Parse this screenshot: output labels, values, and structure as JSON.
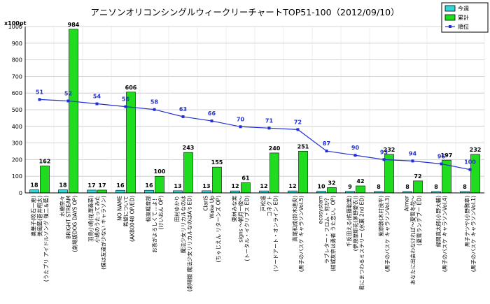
{
  "chart_data": {
    "type": "bar",
    "title": "アニソンオリコンシングルウィークリーチャートTOP51-100（2012/09/10）",
    "xlabel": "",
    "ylabel": "x100pt",
    "ylim": [
      0,
      1000
    ],
    "yticks": [
      0,
      100,
      200,
      300,
      400,
      500,
      600,
      700,
      800,
      900,
      1000
    ],
    "grid": true,
    "legend_position": "top-right",
    "colors": {
      "weekly": "#33d6d6",
      "cumulative": "#1fdc1f",
      "rank": "#1f2fd6"
    },
    "categories": [
      [
        "奥華子(吹石一恵)",
        "美風藍(蒼井翔太)",
        "(うたプリ アイドルソング 嶺二＆藍)"
      ],
      [
        "水樹奈々",
        "BRIGHT STREAM",
        "(劇場版DOG DAYS OP)"
      ],
      [
        "羽鳥小鳩(花澤香菜)",
        "小鳩のうたってみた",
        "(僕は友達が少ない キャラソン)"
      ],
      [
        "NO NAME",
        "希望について",
        "(AKB0048 OP/ED)"
      ],
      [
        "桜高軽音部",
        "お茶がよろしくて…よ！",
        "(けいおん OP)"
      ],
      [
        "田村ゆかり",
        "魔法少女リリカルなのは",
        "(劇場版 魔法少女リリカルなのはA's ED)"
      ],
      [
        "ClariS",
        "Wake Up",
        "(ちゃじえん リターンズ OP)"
      ],
      [
        "栗林みな実",
        "signs ～朝月一夜～",
        "(トータル・イクリプス ED)"
      ],
      [
        "戸松遥",
        "コネクト",
        "(ソードアート・オンライン ED)"
      ],
      [
        "高尾和成(鈴木達央)",
        "(黒子のバスケ キャラソンVol.5)"
      ],
      [
        "ecosystem",
        "ラブレター・フロム・何か？",
        "(結城友奈は勇者 うた恋い。OP)"
      ],
      [
        "千反田える(佐藤聡美)",
        "(伊原摩耶花(茅野愛衣))",
        "君にまつわるミステリー (氷菓 2nd ED)"
      ],
      [
        "紫原敦(木村良平)",
        "(黒子のバスケ キャラソンVol.3)"
      ],
      [
        "Aimer",
        "あなたに出会わなければ～夏雪冬花～",
        "(夏雪ランデブー ED)"
      ],
      [
        "緑間真太郎(小野大輔)",
        "(黒子のバスケ キャラソンVol.4)"
      ],
      [
        "黒子テツヤ(小野賢章)",
        "(黒子のバスケ キャラソンVol.1)"
      ]
    ],
    "series": [
      {
        "name": "今週",
        "type": "bar",
        "values": [
          18,
          18,
          17,
          16,
          16,
          13,
          13,
          12,
          12,
          12,
          10,
          9,
          8,
          8,
          8,
          8
        ]
      },
      {
        "name": "累計",
        "type": "bar",
        "values": [
          162,
          984,
          17,
          606,
          100,
          243,
          155,
          61,
          240,
          251,
          32,
          42,
          232,
          72,
          197,
          232
        ]
      },
      {
        "name": "順位",
        "type": "line",
        "values": [
          51,
          52,
          54,
          56,
          58,
          63,
          66,
          70,
          71,
          72,
          87,
          90,
          93,
          94,
          96,
          100
        ]
      }
    ]
  }
}
